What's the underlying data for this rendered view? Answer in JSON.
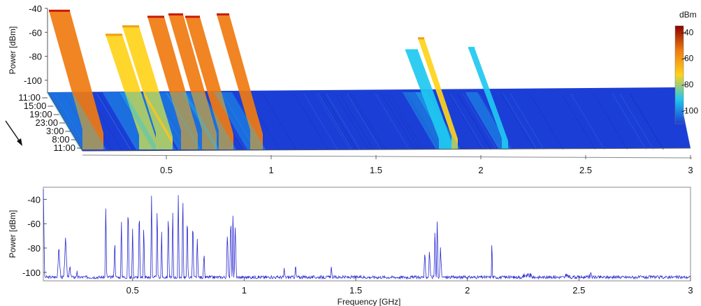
{
  "chart_data": [
    {
      "type": "waterfall-3d",
      "ylabel": "Power [dBm]",
      "zlim": [
        -110,
        -40
      ],
      "z_ticks": [
        -40,
        -60,
        -80,
        -100
      ],
      "time_ticks": [
        "11:00",
        "15:00",
        "19:00",
        "23:00",
        "3:00",
        "8:00",
        "11:00"
      ],
      "x_ticks": [
        "0.5",
        "1",
        "1.5",
        "2",
        "2.5",
        "3"
      ],
      "xlim": [
        0.1,
        3.0
      ],
      "colorbar": {
        "label": "dBm",
        "ticks": [
          "-40",
          "-60",
          "-80",
          "-100"
        ],
        "range": [
          -110,
          -35
        ]
      },
      "colors": {
        "floor": "#1b3fd6",
        "high": "#b80000",
        "mid": "#ffd21a",
        "low": "#20c8f0"
      },
      "bands": [
        {
          "start": 0.1,
          "end": 0.2,
          "peak": -42
        },
        {
          "start": 0.37,
          "end": 0.45,
          "peak": -62
        },
        {
          "start": 0.45,
          "end": 0.53,
          "peak": -55
        },
        {
          "start": 0.57,
          "end": 0.65,
          "peak": -47
        },
        {
          "start": 0.67,
          "end": 0.74,
          "peak": -45
        },
        {
          "start": 0.75,
          "end": 0.82,
          "peak": -47
        },
        {
          "start": 0.9,
          "end": 0.96,
          "peak": -45
        },
        {
          "start": 1.8,
          "end": 1.86,
          "peak": -75
        },
        {
          "start": 1.86,
          "end": 1.89,
          "peak": -65
        },
        {
          "start": 2.1,
          "end": 2.13,
          "peak": -73
        }
      ]
    },
    {
      "type": "line",
      "xlabel": "Frequency [GHz]",
      "ylabel": "Power [dBm]",
      "xlim": [
        0.1,
        3.0
      ],
      "ylim": [
        -107,
        -30
      ],
      "x_ticks": [
        "0.5",
        "1",
        "1.5",
        "2",
        "2.5",
        "3"
      ],
      "y_ticks": [
        -40,
        -60,
        -80,
        -100
      ],
      "series_color": "#2b2bd0",
      "noise_floor": -104,
      "peaks": [
        {
          "x": 0.1,
          "y": -30,
          "w": 0.006
        },
        {
          "x": 0.17,
          "y": -80,
          "w": 0.008
        },
        {
          "x": 0.2,
          "y": -72,
          "w": 0.008
        },
        {
          "x": 0.22,
          "y": -96,
          "w": 0.006
        },
        {
          "x": 0.25,
          "y": -100,
          "w": 0.005
        },
        {
          "x": 0.38,
          "y": -44,
          "w": 0.004
        },
        {
          "x": 0.42,
          "y": -70,
          "w": 0.004
        },
        {
          "x": 0.45,
          "y": -58,
          "w": 0.004
        },
        {
          "x": 0.48,
          "y": -37,
          "w": 0.004
        },
        {
          "x": 0.5,
          "y": -62,
          "w": 0.004
        },
        {
          "x": 0.53,
          "y": -42,
          "w": 0.004
        },
        {
          "x": 0.55,
          "y": -60,
          "w": 0.004
        },
        {
          "x": 0.585,
          "y": -31,
          "w": 0.004
        },
        {
          "x": 0.61,
          "y": -48,
          "w": 0.004
        },
        {
          "x": 0.63,
          "y": -65,
          "w": 0.004
        },
        {
          "x": 0.66,
          "y": -45,
          "w": 0.004
        },
        {
          "x": 0.68,
          "y": -52,
          "w": 0.004
        },
        {
          "x": 0.705,
          "y": -33,
          "w": 0.004
        },
        {
          "x": 0.725,
          "y": -36,
          "w": 0.004
        },
        {
          "x": 0.745,
          "y": -48,
          "w": 0.004
        },
        {
          "x": 0.77,
          "y": -52,
          "w": 0.004
        },
        {
          "x": 0.79,
          "y": -70,
          "w": 0.004
        },
        {
          "x": 0.82,
          "y": -84,
          "w": 0.004
        },
        {
          "x": 0.925,
          "y": -63,
          "w": 0.005
        },
        {
          "x": 0.94,
          "y": -52,
          "w": 0.005
        },
        {
          "x": 0.95,
          "y": -37,
          "w": 0.003
        },
        {
          "x": 0.96,
          "y": -58,
          "w": 0.005
        },
        {
          "x": 1.18,
          "y": -98,
          "w": 0.004
        },
        {
          "x": 1.23,
          "y": -94,
          "w": 0.004
        },
        {
          "x": 1.39,
          "y": -97,
          "w": 0.004
        },
        {
          "x": 1.81,
          "y": -84,
          "w": 0.005
        },
        {
          "x": 1.83,
          "y": -82,
          "w": 0.005
        },
        {
          "x": 1.855,
          "y": -65,
          "w": 0.004
        },
        {
          "x": 1.865,
          "y": -54,
          "w": 0.004
        },
        {
          "x": 1.88,
          "y": -78,
          "w": 0.005
        },
        {
          "x": 2.11,
          "y": -72,
          "w": 0.003
        },
        {
          "x": 2.27,
          "y": -103,
          "w": 0.02
        },
        {
          "x": 2.45,
          "y": -103,
          "w": 0.01
        },
        {
          "x": 2.55,
          "y": -103,
          "w": 0.01
        }
      ]
    }
  ]
}
